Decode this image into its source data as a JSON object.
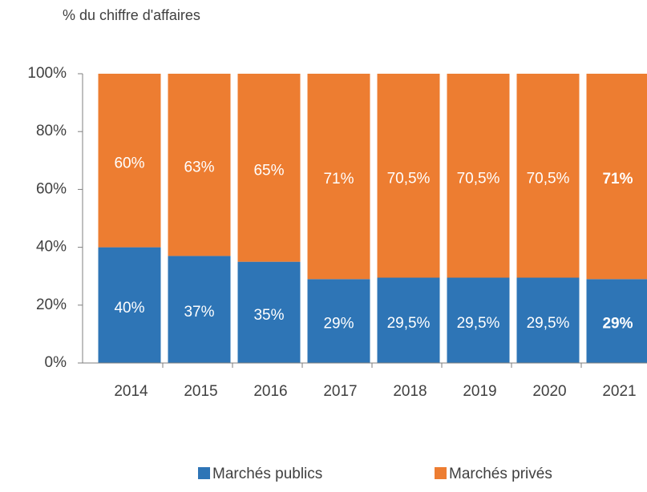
{
  "chart_data": {
    "type": "stacked_bar",
    "title": "% du chiffre d'affaires",
    "categories": [
      "2014",
      "2015",
      "2016",
      "2017",
      "2018",
      "2019",
      "2020",
      "2021"
    ],
    "series": [
      {
        "name": "Marchés publics",
        "color": "#2e75b6",
        "values": [
          40,
          37,
          35,
          29,
          29.5,
          29.5,
          29.5,
          29
        ],
        "value_labels": [
          "40%",
          "37%",
          "35%",
          "29%",
          "29,5%",
          "29,5%",
          "29,5%",
          "29%"
        ]
      },
      {
        "name": "Marchés privés",
        "color": "#ed7d31",
        "values": [
          60,
          63,
          65,
          71,
          70.5,
          70.5,
          70.5,
          71
        ],
        "value_labels": [
          "60%",
          "63%",
          "65%",
          "71%",
          "70,5%",
          "70,5%",
          "70,5%",
          "71%"
        ]
      }
    ],
    "ylim": [
      0,
      100
    ],
    "yticks": [
      {
        "value": 0,
        "label": "0%"
      },
      {
        "value": 20,
        "label": "20%"
      },
      {
        "value": 40,
        "label": "40%"
      },
      {
        "value": 60,
        "label": "60%"
      },
      {
        "value": 80,
        "label": "80%"
      },
      {
        "value": 100,
        "label": "100%"
      }
    ],
    "bold_last": true,
    "legend": "bottom"
  }
}
